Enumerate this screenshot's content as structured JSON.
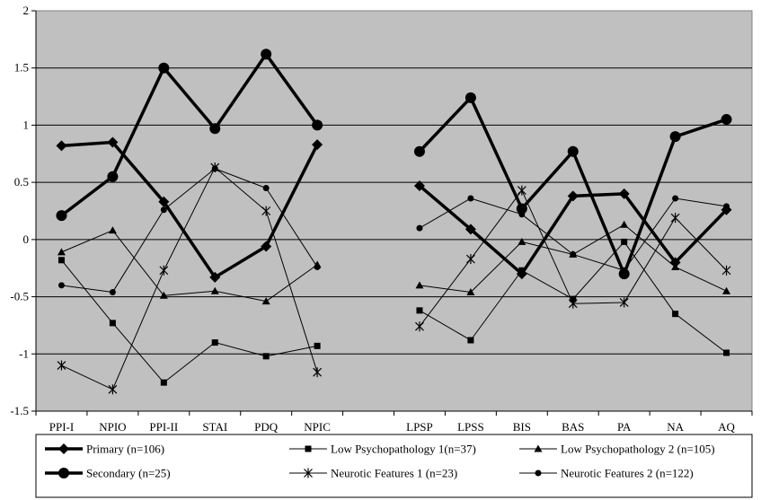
{
  "chart_data": {
    "type": "line",
    "title": "",
    "xlabel": "",
    "ylabel": "",
    "ylim": [
      -1.5,
      2
    ],
    "yticks": [
      "2",
      "1.5",
      "1",
      "0.5",
      "0",
      "-0.5",
      "-1",
      "-1.5"
    ],
    "ytick_values": [
      2,
      1.5,
      1,
      0.5,
      0,
      -0.5,
      -1,
      -1.5
    ],
    "grid": true,
    "legend_position": "bottom",
    "categories": [
      "PPI-I",
      "NPIO",
      "PPI-II",
      "STAI",
      "PDQ",
      "NPIC",
      "",
      "LPSP",
      "LPSS",
      "BIS",
      "BAS",
      "PA",
      "NA",
      "AQ"
    ],
    "series": [
      {
        "name": "Primary (n=106)",
        "marker": "diamond",
        "bold": true,
        "values": [
          0.82,
          0.85,
          0.33,
          -0.33,
          -0.06,
          0.83,
          null,
          0.47,
          0.09,
          -0.3,
          0.38,
          0.4,
          -0.2,
          0.26
        ]
      },
      {
        "name": "Secondary (n=25)",
        "marker": "circle-large",
        "bold": true,
        "values": [
          0.21,
          0.55,
          1.5,
          0.97,
          1.62,
          1.0,
          null,
          0.77,
          1.24,
          0.27,
          0.77,
          -0.3,
          0.9,
          1.05
        ]
      },
      {
        "name": "Low Psychopathology 1(n=37)",
        "marker": "square",
        "bold": false,
        "values": [
          -0.18,
          -0.73,
          -1.25,
          -0.9,
          -1.02,
          -0.93,
          null,
          -0.62,
          -0.88,
          -0.27,
          -0.52,
          -0.02,
          -0.65,
          -0.99
        ]
      },
      {
        "name": "Neurotic Features 1 (n=23)",
        "marker": "star",
        "bold": false,
        "values": [
          -1.1,
          -1.31,
          -0.27,
          0.63,
          0.25,
          -1.16,
          null,
          -0.76,
          -0.17,
          0.43,
          -0.56,
          -0.55,
          0.19,
          -0.27
        ]
      },
      {
        "name": "Low Psychopathology 2 (n=105)",
        "marker": "triangle",
        "bold": false,
        "values": [
          -0.11,
          0.08,
          -0.49,
          -0.45,
          -0.54,
          -0.22,
          null,
          -0.4,
          -0.46,
          -0.02,
          -0.13,
          0.13,
          -0.24,
          -0.45
        ]
      },
      {
        "name": "Neurotic Features 2 (n=122)",
        "marker": "circle-small",
        "bold": false,
        "values": [
          -0.4,
          -0.46,
          0.26,
          0.62,
          0.45,
          -0.24,
          null,
          0.1,
          0.36,
          0.22,
          -0.13,
          -0.27,
          0.36,
          0.29
        ]
      }
    ]
  }
}
